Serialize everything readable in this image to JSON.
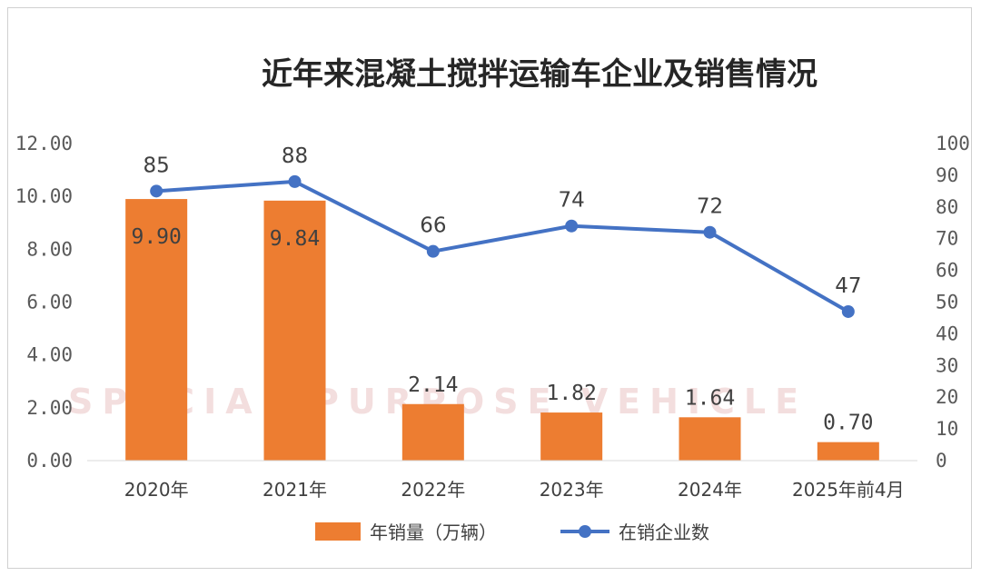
{
  "colors": {
    "bar": "#ED7D31",
    "line": "#4472C4",
    "text": "#404040",
    "axis_text": "#595959",
    "frame": "#d0d0d0"
  },
  "chart_data": {
    "type": "bar",
    "title": "近年来混凝土搅拌运输车企业及销售情况",
    "categories": [
      "2020年",
      "2021年",
      "2022年",
      "2023年",
      "2024年",
      "2025年前4月"
    ],
    "series": [
      {
        "name": "年销量（万辆）",
        "type": "bar",
        "axis": "left",
        "values": [
          9.9,
          9.84,
          2.14,
          1.82,
          1.64,
          0.7
        ],
        "labels": [
          "9.90",
          "9.84",
          "2.14",
          "1.82",
          "1.64",
          "0.70"
        ]
      },
      {
        "name": "在销企业数",
        "type": "line",
        "axis": "right",
        "values": [
          85,
          88,
          66,
          74,
          72,
          47
        ],
        "labels": [
          "85",
          "88",
          "66",
          "74",
          "72",
          "47"
        ]
      }
    ],
    "y_left": {
      "ylim": [
        0,
        12
      ],
      "ticks": [
        0,
        2,
        4,
        6,
        8,
        10,
        12
      ],
      "tick_labels": [
        "0.00",
        "2.00",
        "4.00",
        "6.00",
        "8.00",
        "10.00",
        "12.00"
      ]
    },
    "y_right": {
      "ylim": [
        0,
        100
      ],
      "ticks": [
        0,
        10,
        20,
        30,
        40,
        50,
        60,
        70,
        80,
        90,
        100
      ],
      "tick_labels": [
        "0",
        "10",
        "20",
        "30",
        "40",
        "50",
        "60",
        "70",
        "80",
        "90",
        "100"
      ]
    },
    "grid": false,
    "legend_position": "bottom"
  },
  "watermark": {
    "text": "SPECIAL PURPOSE VEHICLE"
  }
}
